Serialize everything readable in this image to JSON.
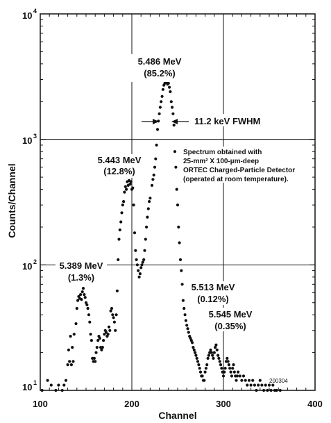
{
  "chart_data": {
    "type": "scatter",
    "xlabel": "Channel",
    "ylabel": "Counts/Channel",
    "xlim": [
      100,
      400
    ],
    "ylim": [
      10,
      10000
    ],
    "yscale": "log",
    "grid": true,
    "x_ticks": [
      "100",
      "200",
      "300",
      "400"
    ],
    "y_ticks": [
      {
        "base": "10",
        "exp": "1"
      },
      {
        "base": "10",
        "exp": "2"
      },
      {
        "base": "10",
        "exp": "3"
      },
      {
        "base": "10",
        "exp": "4"
      }
    ],
    "annotations": {
      "peak_main": {
        "energy": "5.486 MeV",
        "fraction": "(85.2%)"
      },
      "fwhm": "11.2 keV FWHM",
      "peak_5443": {
        "energy": "5.443 MeV",
        "fraction": "(12.8%)"
      },
      "peak_5389": {
        "energy": "5.389 MeV",
        "fraction": "(1.3%)"
      },
      "peak_5513": {
        "energy": "5.513 MeV",
        "fraction": "(0.12%)"
      },
      "peak_5545": {
        "energy": "5.545 MeV",
        "fraction": "(0.35%)"
      },
      "note": [
        "Spectrum obtained with",
        "25-mm² X 100-µm-deep",
        "ORTEC Charged-Particle Detector",
        "(operated at room temperature)."
      ],
      "code": "200304"
    },
    "series": [
      {
        "points": [
          [
            102,
            10
          ],
          [
            108,
            12
          ],
          [
            112,
            11
          ],
          [
            117,
            10
          ],
          [
            120,
            11
          ],
          [
            124,
            10
          ],
          [
            126,
            11
          ],
          [
            128,
            12
          ],
          [
            130,
            16
          ],
          [
            132,
            17
          ],
          [
            134,
            16
          ],
          [
            136,
            17
          ],
          [
            131,
            21
          ],
          [
            135,
            22
          ],
          [
            133,
            27
          ],
          [
            137,
            28
          ],
          [
            139,
            34
          ],
          [
            140,
            45
          ],
          [
            141,
            52
          ],
          [
            142,
            56
          ],
          [
            143,
            54
          ],
          [
            144,
            58
          ],
          [
            145,
            53
          ],
          [
            146,
            61
          ],
          [
            147,
            65
          ],
          [
            148,
            58
          ],
          [
            149,
            55
          ],
          [
            150,
            50
          ],
          [
            151,
            48
          ],
          [
            152,
            45
          ],
          [
            153,
            40
          ],
          [
            154,
            35
          ],
          [
            155,
            28
          ],
          [
            156,
            25
          ],
          [
            157,
            18
          ],
          [
            158,
            17
          ],
          [
            159,
            18
          ],
          [
            160,
            17
          ],
          [
            161,
            20
          ],
          [
            162,
            22
          ],
          [
            163,
            25
          ],
          [
            164,
            27
          ],
          [
            165,
            26
          ],
          [
            166,
            22
          ],
          [
            167,
            21
          ],
          [
            168,
            22
          ],
          [
            169,
            25
          ],
          [
            170,
            28
          ],
          [
            171,
            30
          ],
          [
            172,
            29
          ],
          [
            173,
            27
          ],
          [
            174,
            28
          ],
          [
            175,
            32
          ],
          [
            176,
            30
          ],
          [
            177,
            43
          ],
          [
            178,
            45
          ],
          [
            179,
            40
          ],
          [
            180,
            38
          ],
          [
            181,
            35
          ],
          [
            182,
            30
          ],
          [
            183,
            40
          ],
          [
            184,
            62
          ],
          [
            185,
            110
          ],
          [
            186,
            160
          ],
          [
            187,
            190
          ],
          [
            188,
            220
          ],
          [
            189,
            260
          ],
          [
            190,
            300
          ],
          [
            191,
            320
          ],
          [
            192,
            380
          ],
          [
            193,
            420
          ],
          [
            194,
            400
          ],
          [
            195,
            460
          ],
          [
            196,
            430
          ],
          [
            197,
            470
          ],
          [
            198,
            440
          ],
          [
            199,
            460
          ],
          [
            200,
            400
          ],
          [
            201,
            410
          ],
          [
            202,
            300
          ],
          [
            203,
            180
          ],
          [
            204,
            130
          ],
          [
            205,
            110
          ],
          [
            206,
            100
          ],
          [
            207,
            90
          ],
          [
            208,
            80
          ],
          [
            209,
            85
          ],
          [
            210,
            95
          ],
          [
            211,
            100
          ],
          [
            212,
            105
          ],
          [
            213,
            110
          ],
          [
            214,
            130
          ],
          [
            215,
            160
          ],
          [
            216,
            200
          ],
          [
            217,
            240
          ],
          [
            218,
            280
          ],
          [
            219,
            320
          ],
          [
            220,
            340
          ],
          [
            222,
            430
          ],
          [
            223,
            480
          ],
          [
            224,
            520
          ],
          [
            225,
            600
          ],
          [
            226,
            700
          ],
          [
            227,
            900
          ],
          [
            228,
            1200
          ],
          [
            229,
            1400
          ],
          [
            230,
            1600
          ],
          [
            231,
            1800
          ],
          [
            232,
            2000
          ],
          [
            233,
            2200
          ],
          [
            234,
            2500
          ],
          [
            235,
            2700
          ],
          [
            236,
            2800
          ],
          [
            237,
            2900
          ],
          [
            238,
            2850
          ],
          [
            239,
            2750
          ],
          [
            240,
            2800
          ],
          [
            241,
            2600
          ],
          [
            242,
            2400
          ],
          [
            243,
            2000
          ],
          [
            244,
            1800
          ],
          [
            245,
            1600
          ],
          [
            246,
            1300
          ],
          [
            247,
            800
          ],
          [
            248,
            600
          ],
          [
            249,
            400
          ],
          [
            250,
            300
          ],
          [
            251,
            200
          ],
          [
            252,
            150
          ],
          [
            253,
            110
          ],
          [
            254,
            90
          ],
          [
            255,
            70
          ],
          [
            256,
            52
          ],
          [
            257,
            45
          ],
          [
            258,
            40
          ],
          [
            259,
            36
          ],
          [
            260,
            33
          ],
          [
            261,
            31
          ],
          [
            262,
            29
          ],
          [
            263,
            27
          ],
          [
            264,
            26
          ],
          [
            265,
            25
          ],
          [
            266,
            24
          ],
          [
            267,
            22
          ],
          [
            268,
            21
          ],
          [
            269,
            20
          ],
          [
            270,
            19
          ],
          [
            271,
            18
          ],
          [
            272,
            17
          ],
          [
            273,
            16
          ],
          [
            274,
            15
          ],
          [
            275,
            14
          ],
          [
            276,
            13
          ],
          [
            277,
            13
          ],
          [
            278,
            12
          ],
          [
            279,
            12
          ],
          [
            280,
            14
          ],
          [
            281,
            15
          ],
          [
            282,
            16
          ],
          [
            283,
            18
          ],
          [
            284,
            19
          ],
          [
            285,
            20
          ],
          [
            286,
            21
          ],
          [
            287,
            20
          ],
          [
            288,
            19
          ],
          [
            289,
            18
          ],
          [
            290,
            20
          ],
          [
            291,
            22
          ],
          [
            292,
            23
          ],
          [
            293,
            21
          ],
          [
            294,
            19
          ],
          [
            295,
            18
          ],
          [
            296,
            17
          ],
          [
            297,
            16
          ],
          [
            298,
            15
          ],
          [
            299,
            14
          ],
          [
            300,
            13
          ],
          [
            301,
            14
          ],
          [
            302,
            15
          ],
          [
            303,
            17
          ],
          [
            304,
            18
          ],
          [
            305,
            17
          ],
          [
            306,
            16
          ],
          [
            307,
            15
          ],
          [
            308,
            14
          ],
          [
            309,
            13
          ],
          [
            310,
            15
          ],
          [
            311,
            16
          ],
          [
            312,
            14
          ],
          [
            313,
            13
          ],
          [
            314,
            12
          ],
          [
            315,
            13
          ],
          [
            316,
            14
          ],
          [
            318,
            13
          ],
          [
            320,
            12
          ],
          [
            322,
            13
          ],
          [
            324,
            12
          ],
          [
            326,
            11
          ],
          [
            328,
            12
          ],
          [
            330,
            11
          ],
          [
            332,
            12
          ],
          [
            334,
            11
          ],
          [
            336,
            10
          ],
          [
            338,
            11
          ],
          [
            340,
            12
          ],
          [
            342,
            11
          ],
          [
            344,
            10
          ],
          [
            346,
            11
          ],
          [
            348,
            10
          ],
          [
            350,
            11
          ],
          [
            352,
            10
          ],
          [
            354,
            11
          ],
          [
            356,
            10
          ],
          [
            358,
            10
          ],
          [
            362,
            10
          ]
        ]
      }
    ]
  }
}
